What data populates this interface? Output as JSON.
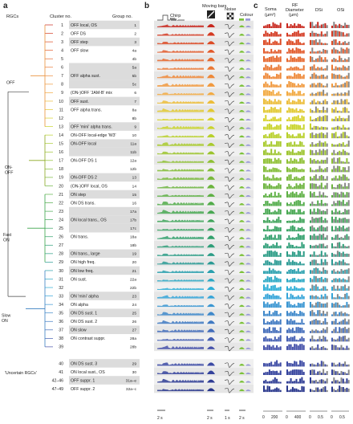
{
  "panels": {
    "a": "a",
    "b": "b",
    "c": "c"
  },
  "headers": {
    "rgcs": "RGCs",
    "cluster_no": "Cluster no.",
    "group_no": "Group no.",
    "chirp": "Chirp",
    "moving_bars": "Moving bars",
    "noise": "Noise",
    "colour": "Colour",
    "soma": "Soma",
    "soma_unit": "(µm²)",
    "rf": "RF",
    "rf2": "Diameter",
    "rf_unit": "(µm)",
    "dsi": "DSi",
    "osi": "OSi"
  },
  "super_groups": [
    {
      "label": "OFF",
      "from": 0,
      "to": 12,
      "color": "#e8913a"
    },
    {
      "label": "ON-\nOFF",
      "from": 13,
      "to": 19,
      "color": "#8aa61f"
    },
    {
      "label": "Fast\nON",
      "from": 20,
      "to": 28,
      "color": "#3aa54a"
    },
    {
      "label": "Slow\nON",
      "from": 29,
      "to": 38,
      "color": "#3a7fc0"
    }
  ],
  "uncertain_label": "'Uncertain RGCs'",
  "rows": [
    {
      "cluster": "1",
      "name": "OFF local, OS",
      "group": "1",
      "color": "#c8281e",
      "shade": 1
    },
    {
      "cluster": "2",
      "name": "OFF DS",
      "group": "2",
      "color": "#d43a22",
      "shade": 0
    },
    {
      "cluster": "3",
      "name": "OFF step",
      "group": "3",
      "color": "#dc4a24",
      "shade": 1
    },
    {
      "cluster": "4",
      "name": "OFF slow",
      "group": "4a",
      "color": "#e2592a",
      "shade": 0
    },
    {
      "cluster": "5",
      "name": "",
      "group": "4b",
      "color": "#e6682e",
      "shade": 0
    },
    {
      "cluster": "6",
      "name": "",
      "group": "5a",
      "color": "#ea7834",
      "shade": 1
    },
    {
      "cluster": "7",
      "name": "OFF alpha sust.",
      "group": "5b",
      "color": "#ee8838",
      "shade": 1
    },
    {
      "cluster": "8",
      "name": "",
      "group": "5c",
      "color": "#f1993e",
      "shade": 1
    },
    {
      "cluster": "9",
      "name": "(ON-)OFF 'JAM-B' mix",
      "group": "6",
      "color": "#f2aa42",
      "shade": 0
    },
    {
      "cluster": "10",
      "name": "OFF sust.",
      "group": "7",
      "color": "#ecbd3a",
      "shade": 1
    },
    {
      "cluster": "11",
      "name": "OFF alpha trans.",
      "group": "8a",
      "color": "#e2c932",
      "shade": 0
    },
    {
      "cluster": "12",
      "name": "",
      "group": "8b",
      "color": "#d8d22c",
      "shade": 0
    },
    {
      "cluster": "13",
      "name": "OFF 'mini' alpha trans.",
      "group": "9",
      "color": "#c9d42a",
      "shade": 1
    },
    {
      "cluster": "14",
      "name": "ON-OFF local-edge 'W3'",
      "group": "10",
      "color": "#b8d02a",
      "shade": 0
    },
    {
      "cluster": "15",
      "name": "ON-OFF local",
      "group": "11a",
      "color": "#a8ca2c",
      "shade": 1
    },
    {
      "cluster": "16",
      "name": "",
      "group": "11b",
      "color": "#9cc42e",
      "shade": 1
    },
    {
      "cluster": "17",
      "name": "ON-OFF DS 1",
      "group": "12a",
      "color": "#8ec032",
      "shade": 0
    },
    {
      "cluster": "18",
      "name": "",
      "group": "12b",
      "color": "#82bc36",
      "shade": 0
    },
    {
      "cluster": "19",
      "name": "ON-OFF DS 2",
      "group": "13",
      "color": "#78b83a",
      "shade": 1
    },
    {
      "cluster": "20",
      "name": "(ON-)OFF local, OS",
      "group": "14",
      "color": "#6cb43e",
      "shade": 0
    },
    {
      "cluster": "21",
      "name": "ON step",
      "group": "15",
      "color": "#5eb044",
      "shade": 1
    },
    {
      "cluster": "22",
      "name": "ON DS trans.",
      "group": "16",
      "color": "#52ac4a",
      "shade": 0
    },
    {
      "cluster": "23",
      "name": "",
      "group": "17a",
      "color": "#48a852",
      "shade": 1
    },
    {
      "cluster": "24",
      "name": "ON local trans., OS",
      "group": "17b",
      "color": "#40a45a",
      "shade": 1
    },
    {
      "cluster": "25",
      "name": "",
      "group": "17c",
      "color": "#38a262",
      "shade": 1
    },
    {
      "cluster": "26",
      "name": "ON trans.",
      "group": "18a",
      "color": "#32a06c",
      "shade": 0
    },
    {
      "cluster": "27",
      "name": "",
      "group": "18b",
      "color": "#2e9e78",
      "shade": 0
    },
    {
      "cluster": "28",
      "name": "ON trans., large",
      "group": "19",
      "color": "#2c9c86",
      "shade": 1
    },
    {
      "cluster": "29",
      "name": "ON high freq.",
      "group": "20",
      "color": "#2a9a94",
      "shade": 0
    },
    {
      "cluster": "30",
      "name": "ON low freq.",
      "group": "21",
      "color": "#2aa0ae",
      "shade": 1
    },
    {
      "cluster": "31",
      "name": "ON sust.",
      "group": "22a",
      "color": "#2aa8c4",
      "shade": 0
    },
    {
      "cluster": "32",
      "name": "",
      "group": "22b",
      "color": "#2eaed6",
      "shade": 0
    },
    {
      "cluster": "33",
      "name": "ON 'mini' alpha",
      "group": "23",
      "color": "#34a4d8",
      "shade": 1
    },
    {
      "cluster": "34",
      "name": "ON alpha",
      "group": "24",
      "color": "#3a96d2",
      "shade": 0
    },
    {
      "cluster": "35",
      "name": "ON DS sust. 1",
      "group": "25",
      "color": "#3e88ca",
      "shade": 1
    },
    {
      "cluster": "36",
      "name": "ON DS sust. 2",
      "group": "26",
      "color": "#407ac2",
      "shade": 0
    },
    {
      "cluster": "37",
      "name": "ON slow",
      "group": "27",
      "color": "#426cba",
      "shade": 1
    },
    {
      "cluster": "38",
      "name": "ON contrast suppr.",
      "group": "28a",
      "color": "#445eb2",
      "shade": 0
    },
    {
      "cluster": "39",
      "name": "",
      "group": "28b",
      "color": "#4652aa",
      "shade": 0
    },
    {
      "cluster": "40",
      "name": "ON DS sust. 3",
      "group": "29",
      "color": "#3c4aa4",
      "shade": 1
    },
    {
      "cluster": "41",
      "name": "ON local sust., OS",
      "group": "30",
      "color": "#34429c",
      "shade": 0
    },
    {
      "cluster": "42–46",
      "name": "OFF suppr. 1",
      "group": "31a–e",
      "color": "#2e3c94",
      "shade": 1
    },
    {
      "cluster": "47–49",
      "name": "OFF suppr. 2",
      "group": "32a–c",
      "color": "#28368c",
      "shade": 0
    }
  ],
  "scales": {
    "chirp": "2 s",
    "bars": "2 s",
    "noise": "1 s",
    "colour": "2 s"
  },
  "axis_ticks": {
    "soma": [
      "0",
      "200"
    ],
    "rf": [
      "0",
      "400"
    ],
    "dsi": [
      "0",
      "0.5"
    ],
    "osi": [
      "0",
      "0.5"
    ]
  },
  "colour_swatches": {
    "green": "#7cc13a",
    "uv": "#9a9ad8"
  }
}
